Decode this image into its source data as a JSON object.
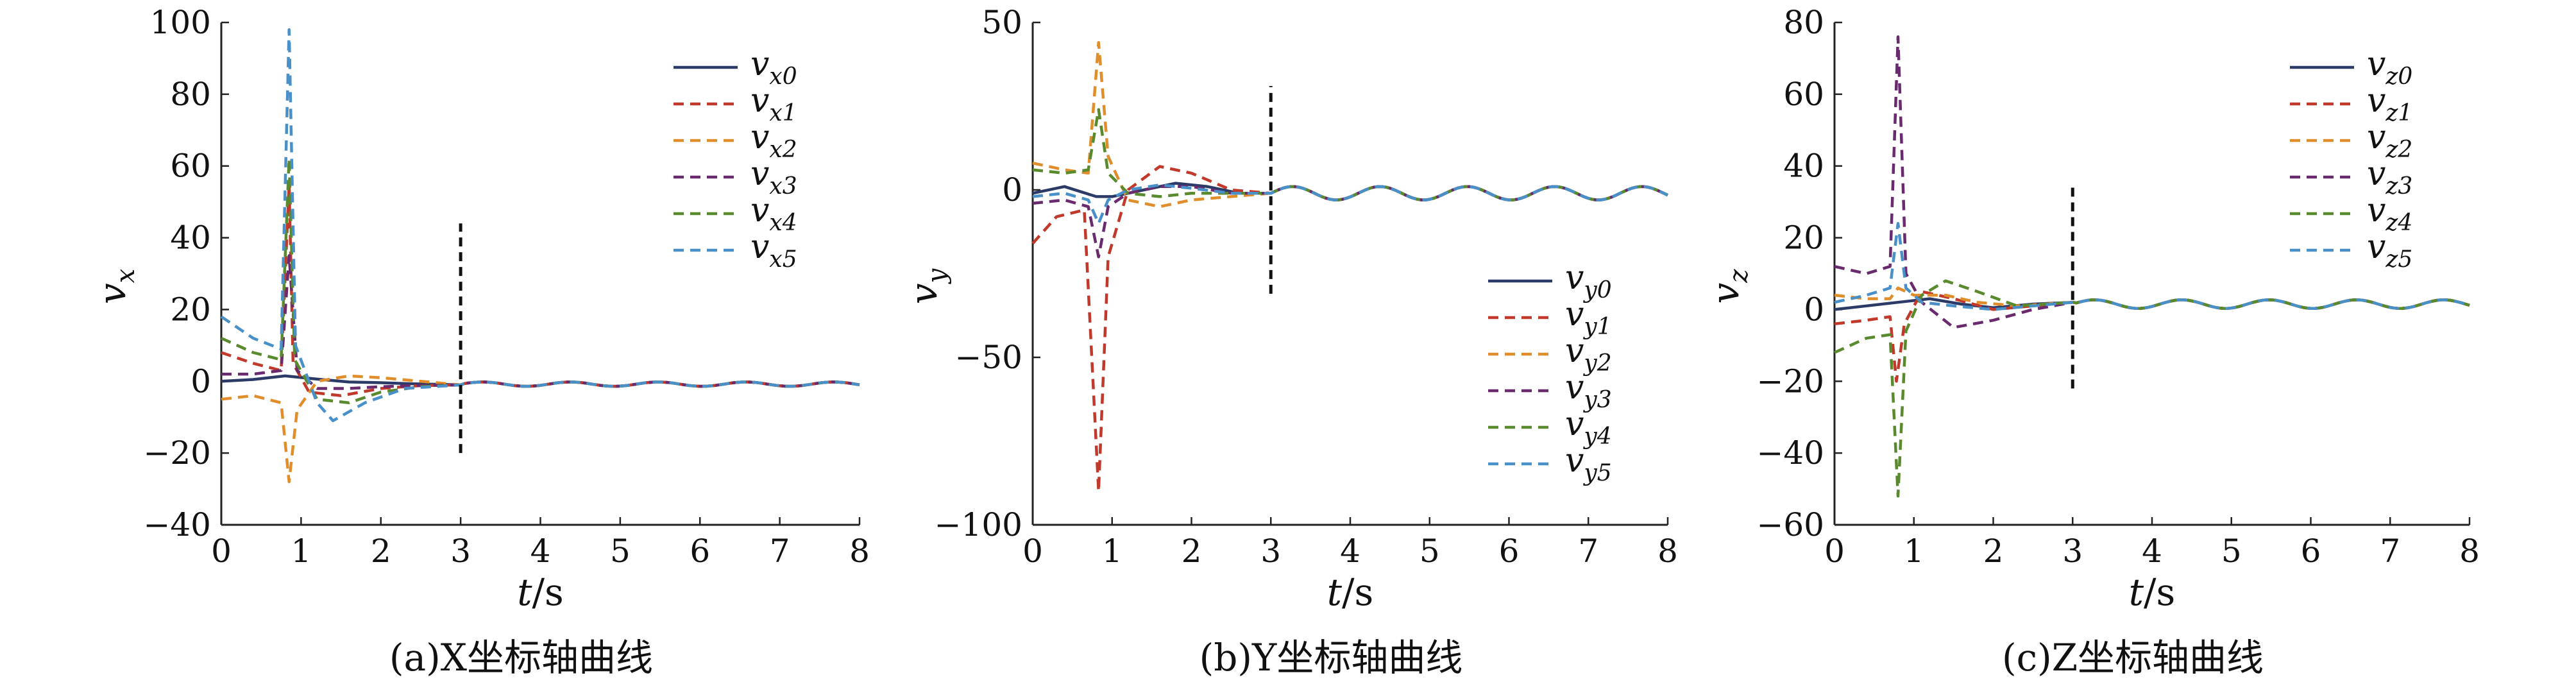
{
  "chart_data": [
    {
      "type": "line",
      "panel": "a",
      "caption": "(a)X坐标轴曲线",
      "xlabel": "t/s",
      "ylabel_base": "v",
      "ylabel_sub": "x",
      "xlim": [
        0,
        8
      ],
      "ylim": [
        -40,
        100
      ],
      "xticks": [
        "0",
        "1",
        "2",
        "3",
        "4",
        "5",
        "6",
        "7",
        "8"
      ],
      "yticks": [
        "−40",
        "−20",
        "0",
        "20",
        "40",
        "60",
        "80",
        "100"
      ],
      "ytick_values": [
        -40,
        -20,
        0,
        20,
        40,
        60,
        80,
        100
      ],
      "marker_line": {
        "x": 3,
        "y_range": [
          -20,
          44
        ]
      },
      "legend_position": "top-right",
      "series": [
        {
          "name_base": "v",
          "name_sub": "x0",
          "color": "#2b3a67",
          "dash": "solid",
          "points": [
            [
              0,
              0
            ],
            [
              0.4,
              0.5
            ],
            [
              0.8,
              1.5
            ],
            [
              1.2,
              0.6
            ],
            [
              1.6,
              -0.2
            ],
            [
              2.0,
              -0.4
            ],
            [
              2.4,
              -0.7
            ],
            [
              2.8,
              -0.9
            ],
            [
              3.0,
              -1.0
            ]
          ]
        },
        {
          "name_base": "v",
          "name_sub": "x1",
          "color": "#c0392b",
          "dash": "dashed",
          "points": [
            [
              0,
              8
            ],
            [
              0.4,
              5
            ],
            [
              0.75,
              3
            ],
            [
              0.85,
              55
            ],
            [
              0.9,
              5
            ],
            [
              1.1,
              -3
            ],
            [
              1.5,
              -4
            ],
            [
              2.0,
              -2
            ],
            [
              2.5,
              -1.2
            ],
            [
              3.0,
              -1.0
            ]
          ]
        },
        {
          "name_base": "v",
          "name_sub": "x2",
          "color": "#e08e2b",
          "dash": "dashed",
          "points": [
            [
              0,
              -5
            ],
            [
              0.4,
              -4
            ],
            [
              0.75,
              -6
            ],
            [
              0.85,
              -28
            ],
            [
              0.95,
              -8
            ],
            [
              1.2,
              0
            ],
            [
              1.6,
              1.5
            ],
            [
              2.0,
              1.0
            ],
            [
              2.5,
              0
            ],
            [
              3.0,
              -1.0
            ]
          ]
        },
        {
          "name_base": "v",
          "name_sub": "x3",
          "color": "#6a2a6e",
          "dash": "dashed",
          "points": [
            [
              0,
              2
            ],
            [
              0.4,
              2
            ],
            [
              0.75,
              3
            ],
            [
              0.85,
              35
            ],
            [
              0.95,
              3
            ],
            [
              1.2,
              -2
            ],
            [
              1.6,
              -2
            ],
            [
              2.0,
              -1.5
            ],
            [
              2.5,
              -1.2
            ],
            [
              3.0,
              -1.0
            ]
          ]
        },
        {
          "name_base": "v",
          "name_sub": "x4",
          "color": "#5a8a2e",
          "dash": "dashed",
          "points": [
            [
              0,
              12
            ],
            [
              0.4,
              8
            ],
            [
              0.75,
              6
            ],
            [
              0.85,
              62
            ],
            [
              0.92,
              6
            ],
            [
              1.2,
              -5
            ],
            [
              1.6,
              -6
            ],
            [
              2.0,
              -3
            ],
            [
              2.5,
              -1.5
            ],
            [
              3.0,
              -1.0
            ]
          ]
        },
        {
          "name_base": "v",
          "name_sub": "x5",
          "color": "#4a90c8",
          "dash": "dashed",
          "points": [
            [
              0,
              18
            ],
            [
              0.4,
              12
            ],
            [
              0.75,
              9
            ],
            [
              0.85,
              98
            ],
            [
              0.93,
              10
            ],
            [
              1.2,
              -6
            ],
            [
              1.4,
              -11
            ],
            [
              1.8,
              -6
            ],
            [
              2.3,
              -2
            ],
            [
              3.0,
              -1.0
            ]
          ]
        }
      ],
      "tail": {
        "from": 3,
        "to": 8,
        "base": -0.8,
        "amp": 0.6,
        "period": 1.1,
        "phase": 0
      }
    },
    {
      "type": "line",
      "panel": "b",
      "caption": "(b)Y坐标轴曲线",
      "xlabel": "t/s",
      "ylabel_base": "v",
      "ylabel_sub": "y",
      "xlim": [
        0,
        8
      ],
      "ylim": [
        -100,
        50
      ],
      "xticks": [
        "0",
        "1",
        "2",
        "3",
        "4",
        "5",
        "6",
        "7",
        "8"
      ],
      "yticks": [
        "−100",
        "−50",
        "0",
        "50"
      ],
      "ytick_values": [
        -100,
        -50,
        0,
        50
      ],
      "marker_line": {
        "x": 3,
        "y_range": [
          -31,
          31
        ]
      },
      "legend_position": "bottom-right",
      "series": [
        {
          "name_base": "v",
          "name_sub": "y0",
          "color": "#2b3a67",
          "dash": "solid",
          "points": [
            [
              0,
              -1
            ],
            [
              0.4,
              1
            ],
            [
              0.8,
              -2
            ],
            [
              1.0,
              -2
            ],
            [
              1.4,
              0
            ],
            [
              1.8,
              2
            ],
            [
              2.2,
              1
            ],
            [
              2.6,
              -1
            ],
            [
              3.0,
              -1
            ]
          ]
        },
        {
          "name_base": "v",
          "name_sub": "y1",
          "color": "#c0392b",
          "dash": "dashed",
          "points": [
            [
              0,
              -16
            ],
            [
              0.3,
              -8
            ],
            [
              0.65,
              -6
            ],
            [
              0.83,
              -90
            ],
            [
              0.95,
              -20
            ],
            [
              1.2,
              0
            ],
            [
              1.6,
              7
            ],
            [
              2.0,
              5
            ],
            [
              2.5,
              0
            ],
            [
              3.0,
              -1
            ]
          ]
        },
        {
          "name_base": "v",
          "name_sub": "y2",
          "color": "#e08e2b",
          "dash": "dashed",
          "points": [
            [
              0,
              8
            ],
            [
              0.4,
              6
            ],
            [
              0.7,
              5
            ],
            [
              0.83,
              44
            ],
            [
              0.95,
              10
            ],
            [
              1.2,
              -3
            ],
            [
              1.6,
              -5
            ],
            [
              2.0,
              -3
            ],
            [
              2.5,
              -2
            ],
            [
              3.0,
              -1
            ]
          ]
        },
        {
          "name_base": "v",
          "name_sub": "y3",
          "color": "#6a2a6e",
          "dash": "dashed",
          "points": [
            [
              0,
              -4
            ],
            [
              0.4,
              -3
            ],
            [
              0.7,
              -5
            ],
            [
              0.83,
              -20
            ],
            [
              0.95,
              -5
            ],
            [
              1.2,
              -1
            ],
            [
              1.6,
              1
            ],
            [
              2.0,
              1
            ],
            [
              2.5,
              -1
            ],
            [
              3.0,
              -1
            ]
          ]
        },
        {
          "name_base": "v",
          "name_sub": "y4",
          "color": "#5a8a2e",
          "dash": "dashed",
          "points": [
            [
              0,
              6
            ],
            [
              0.4,
              5
            ],
            [
              0.7,
              6
            ],
            [
              0.83,
              24
            ],
            [
              0.95,
              5
            ],
            [
              1.2,
              -1
            ],
            [
              1.6,
              -2
            ],
            [
              2.0,
              -1
            ],
            [
              2.5,
              -1
            ],
            [
              3.0,
              -1
            ]
          ]
        },
        {
          "name_base": "v",
          "name_sub": "y5",
          "color": "#4a90c8",
          "dash": "dashed",
          "points": [
            [
              0,
              -2
            ],
            [
              0.4,
              -1
            ],
            [
              0.7,
              -3
            ],
            [
              0.83,
              -10
            ],
            [
              0.95,
              -3
            ],
            [
              1.2,
              0
            ],
            [
              1.6,
              1.5
            ],
            [
              2.0,
              0.5
            ],
            [
              2.5,
              -1
            ],
            [
              3.0,
              -1
            ]
          ]
        }
      ],
      "tail": {
        "from": 3,
        "to": 8,
        "base": -1.0,
        "amp": 2.0,
        "period": 1.1,
        "phase": 0
      }
    },
    {
      "type": "line",
      "panel": "c",
      "caption": "(c)Z坐标轴曲线",
      "xlabel": "t/s",
      "ylabel_base": "v",
      "ylabel_sub": "z",
      "xlim": [
        0,
        8
      ],
      "ylim": [
        -60,
        80
      ],
      "xticks": [
        "0",
        "1",
        "2",
        "3",
        "4",
        "5",
        "6",
        "7",
        "8"
      ],
      "yticks": [
        "−60",
        "−40",
        "−20",
        "0",
        "20",
        "40",
        "60",
        "80"
      ],
      "ytick_values": [
        -60,
        -40,
        -20,
        0,
        20,
        40,
        60,
        80
      ],
      "marker_line": {
        "x": 3,
        "y_range": [
          -22,
          35
        ]
      },
      "legend_position": "top-right",
      "series": [
        {
          "name_base": "v",
          "name_sub": "z0",
          "color": "#2b3a67",
          "dash": "solid",
          "points": [
            [
              0,
              0
            ],
            [
              0.4,
              1
            ],
            [
              0.8,
              2
            ],
            [
              1.2,
              3
            ],
            [
              1.6,
              1.5
            ],
            [
              2.0,
              0.5
            ],
            [
              2.5,
              1.5
            ],
            [
              3.0,
              2.0
            ]
          ]
        },
        {
          "name_base": "v",
          "name_sub": "z1",
          "color": "#c0392b",
          "dash": "dashed",
          "points": [
            [
              0,
              -4
            ],
            [
              0.4,
              -3
            ],
            [
              0.7,
              -2
            ],
            [
              0.78,
              -20
            ],
            [
              0.88,
              -4
            ],
            [
              1.1,
              5
            ],
            [
              1.5,
              3
            ],
            [
              2.0,
              0
            ],
            [
              2.5,
              1
            ],
            [
              3.0,
              2
            ]
          ]
        },
        {
          "name_base": "v",
          "name_sub": "z2",
          "color": "#e08e2b",
          "dash": "dashed",
          "points": [
            [
              0,
              4
            ],
            [
              0.4,
              3
            ],
            [
              0.7,
              3
            ],
            [
              0.8,
              6
            ],
            [
              1.0,
              4
            ],
            [
              1.4,
              4
            ],
            [
              1.8,
              2
            ],
            [
              2.3,
              1
            ],
            [
              3.0,
              2
            ]
          ]
        },
        {
          "name_base": "v",
          "name_sub": "z3",
          "color": "#6a2a6e",
          "dash": "dashed",
          "points": [
            [
              0,
              12
            ],
            [
              0.4,
              10
            ],
            [
              0.7,
              12
            ],
            [
              0.8,
              76
            ],
            [
              0.9,
              10
            ],
            [
              1.1,
              2
            ],
            [
              1.5,
              -5
            ],
            [
              2.0,
              -3
            ],
            [
              2.5,
              0
            ],
            [
              3.0,
              2
            ]
          ]
        },
        {
          "name_base": "v",
          "name_sub": "z4",
          "color": "#5a8a2e",
          "dash": "dashed",
          "points": [
            [
              0,
              -12
            ],
            [
              0.4,
              -8
            ],
            [
              0.7,
              -7
            ],
            [
              0.8,
              -52
            ],
            [
              0.9,
              -6
            ],
            [
              1.1,
              4
            ],
            [
              1.4,
              8
            ],
            [
              1.8,
              5
            ],
            [
              2.3,
              1
            ],
            [
              3.0,
              2
            ]
          ]
        },
        {
          "name_base": "v",
          "name_sub": "z5",
          "color": "#4a90c8",
          "dash": "dashed",
          "points": [
            [
              0,
              2
            ],
            [
              0.4,
              4
            ],
            [
              0.7,
              6
            ],
            [
              0.8,
              24
            ],
            [
              0.9,
              6
            ],
            [
              1.1,
              2
            ],
            [
              1.5,
              1
            ],
            [
              2.0,
              0
            ],
            [
              2.5,
              1
            ],
            [
              3.0,
              2
            ]
          ]
        }
      ],
      "tail": {
        "from": 3,
        "to": 8,
        "base": 1.5,
        "amp": 1.2,
        "period": 1.1,
        "phase": 0
      }
    }
  ]
}
